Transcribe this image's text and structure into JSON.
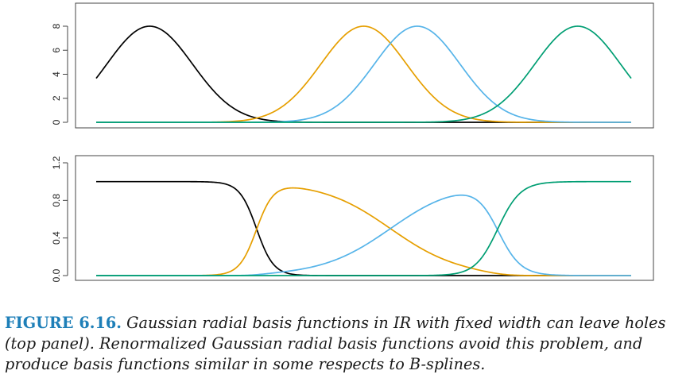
{
  "colors": {
    "black": "#000000",
    "orange": "#e69f00",
    "skyblue": "#56b4e9",
    "green": "#009e73",
    "caption_label": "#1e7fb8"
  },
  "chart_data": [
    {
      "type": "line",
      "x_range": [
        0,
        1
      ],
      "ylim": [
        0,
        8
      ],
      "yticks": [
        "0",
        "2",
        "4",
        "6",
        "8"
      ],
      "grid": false,
      "basis": "gaussian",
      "lambda": 0.08,
      "peak": 8,
      "centers": [
        0.1,
        0.5,
        0.6,
        0.9
      ],
      "series": [
        {
          "color": "black",
          "center": 0.1
        },
        {
          "color": "orange",
          "center": 0.5
        },
        {
          "color": "skyblue",
          "center": 0.6
        },
        {
          "color": "green",
          "center": 0.9
        }
      ]
    },
    {
      "type": "line",
      "x_range": [
        0,
        1
      ],
      "ylim": [
        0,
        1.2
      ],
      "yticks": [
        "0.0",
        "0.4",
        "0.8",
        "1.2"
      ],
      "grid": false,
      "basis": "renormalized-gaussian",
      "lambda": 0.08,
      "centers": [
        0.1,
        0.5,
        0.6,
        0.9
      ],
      "series": [
        {
          "color": "black",
          "center": 0.1
        },
        {
          "color": "orange",
          "center": 0.5
        },
        {
          "color": "skyblue",
          "center": 0.6
        },
        {
          "color": "green",
          "center": 0.9
        }
      ]
    }
  ],
  "caption": {
    "label": "FIGURE 6.16.",
    "text": " Gaussian radial basis functions in IR with fixed width can leave holes (top panel). Renormalized Gaussian radial basis functions avoid this problem, and produce basis functions similar in some respects to B-splines."
  }
}
